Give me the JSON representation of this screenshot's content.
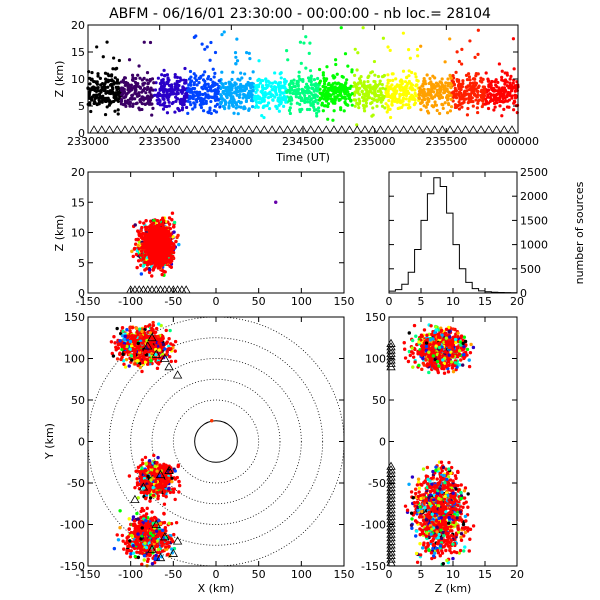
{
  "title": "ABFM - 06/16/01 23:30:00 - 00:00:00 - nb loc.=  28104",
  "colors": {
    "axis": "#000000",
    "rainbow": [
      "#000000",
      "#3b0066",
      "#2a00c8",
      "#0044ff",
      "#00a8ff",
      "#00ffff",
      "#00ff80",
      "#00ff00",
      "#b0ff00",
      "#ffff00",
      "#ffa000",
      "#ff2000",
      "#ff0000"
    ]
  },
  "chart_data": [
    {
      "id": "time_height",
      "type": "scatter",
      "xlabel": "Time (UT)",
      "ylabel": "Z (km)",
      "xticks": [
        "233000",
        "233500",
        "234000",
        "234500",
        "235000",
        "235500",
        "000000"
      ],
      "yticks": [
        "0",
        "5",
        "10",
        "15",
        "20"
      ],
      "ylim": [
        0,
        20
      ],
      "note_markers": "station triangles along Z=0"
    },
    {
      "id": "x_height",
      "type": "scatter",
      "xlabel": "",
      "ylabel": "Z (km)",
      "xticks": [
        "-150",
        "-100",
        "-50",
        "0",
        "50",
        "100",
        "150"
      ],
      "yticks": [
        "0",
        "5",
        "10",
        "15",
        "20"
      ],
      "xlim": [
        -150,
        150
      ],
      "ylim": [
        0,
        20
      ]
    },
    {
      "id": "height_histogram",
      "type": "line",
      "xlabel": "",
      "ylabel": "number of sources",
      "xticks": [
        "0",
        "5",
        "10",
        "15",
        "20"
      ],
      "yticks": [
        "0",
        "500",
        "1000",
        "1500",
        "2000",
        "2500"
      ],
      "xlim": [
        0,
        20
      ],
      "ylim": [
        0,
        2500
      ],
      "x": [
        0,
        1,
        2,
        3,
        4,
        5,
        6,
        7,
        8,
        9,
        10,
        11,
        12,
        13,
        14,
        15,
        16,
        17,
        18,
        19,
        20
      ],
      "values": [
        40,
        70,
        180,
        430,
        900,
        1500,
        2050,
        2380,
        2200,
        1650,
        1000,
        500,
        220,
        90,
        45,
        25,
        15,
        10,
        8,
        5,
        3
      ]
    },
    {
      "id": "plan_view",
      "type": "scatter",
      "xlabel": "X (km)",
      "ylabel": "Y (km)",
      "xticks": [
        "-150",
        "-100",
        "-50",
        "0",
        "50",
        "100",
        "150"
      ],
      "yticks": [
        "-150",
        "-100",
        "-50",
        "0",
        "50",
        "100",
        "150"
      ],
      "xlim": [
        -150,
        150
      ],
      "ylim": [
        -150,
        150
      ],
      "range_rings_km": [
        25,
        50,
        75,
        100,
        125,
        150
      ]
    },
    {
      "id": "z_y",
      "type": "scatter",
      "xlabel": "Z (km)",
      "ylabel": "",
      "xticks": [
        "0",
        "5",
        "10",
        "15",
        "20"
      ],
      "yticks": [
        "-150",
        "-100",
        "-50",
        "0",
        "50",
        "100",
        "150"
      ],
      "xlim": [
        0,
        20
      ],
      "ylim": [
        -150,
        150
      ]
    }
  ]
}
